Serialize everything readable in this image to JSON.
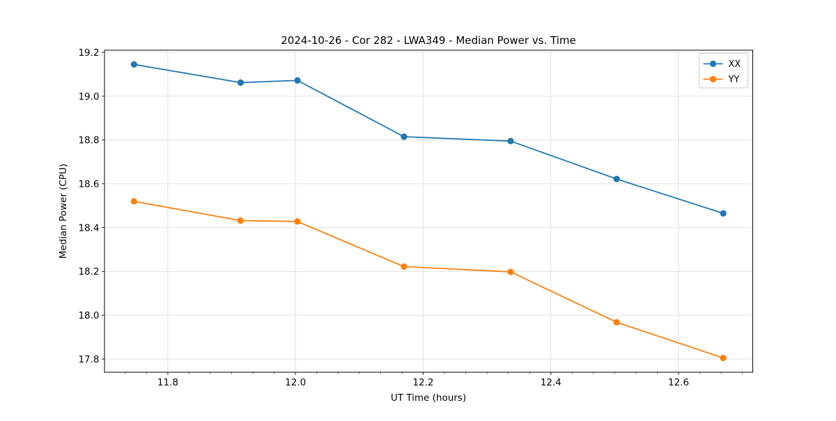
{
  "chart_data": {
    "type": "line",
    "title": "2024-10-26 - Cor 282 - LWA349 - Median Power vs. Time",
    "xlabel": "UT Time (hours)",
    "ylabel": "Median Power (CPU)",
    "xlim": [
      11.7008,
      12.7162
    ],
    "ylim": [
      17.74,
      19.21
    ],
    "xticks": [
      11.8,
      12.0,
      12.2,
      12.4,
      12.6
    ],
    "yticks": [
      17.8,
      18.0,
      18.2,
      18.4,
      18.6,
      18.8,
      19.0,
      19.2
    ],
    "x_minor_step": 0.0333333,
    "grid": true,
    "legend_position": "upper-right",
    "x": [
      11.747,
      11.914,
      12.003,
      12.17,
      12.337,
      12.503,
      12.67
    ],
    "series": [
      {
        "name": "XX",
        "color": "#1f77b4",
        "marker": "circle",
        "values": [
          19.145,
          19.062,
          19.072,
          18.815,
          18.795,
          18.622,
          18.465
        ]
      },
      {
        "name": "YY",
        "color": "#ff7f0e",
        "marker": "circle",
        "values": [
          18.52,
          18.432,
          18.428,
          18.222,
          18.198,
          17.968,
          17.805
        ]
      }
    ],
    "colors": {
      "grid": "#e0e0e0",
      "spine": "#000000",
      "legend_border": "#cccccc",
      "background": "#ffffff"
    }
  }
}
